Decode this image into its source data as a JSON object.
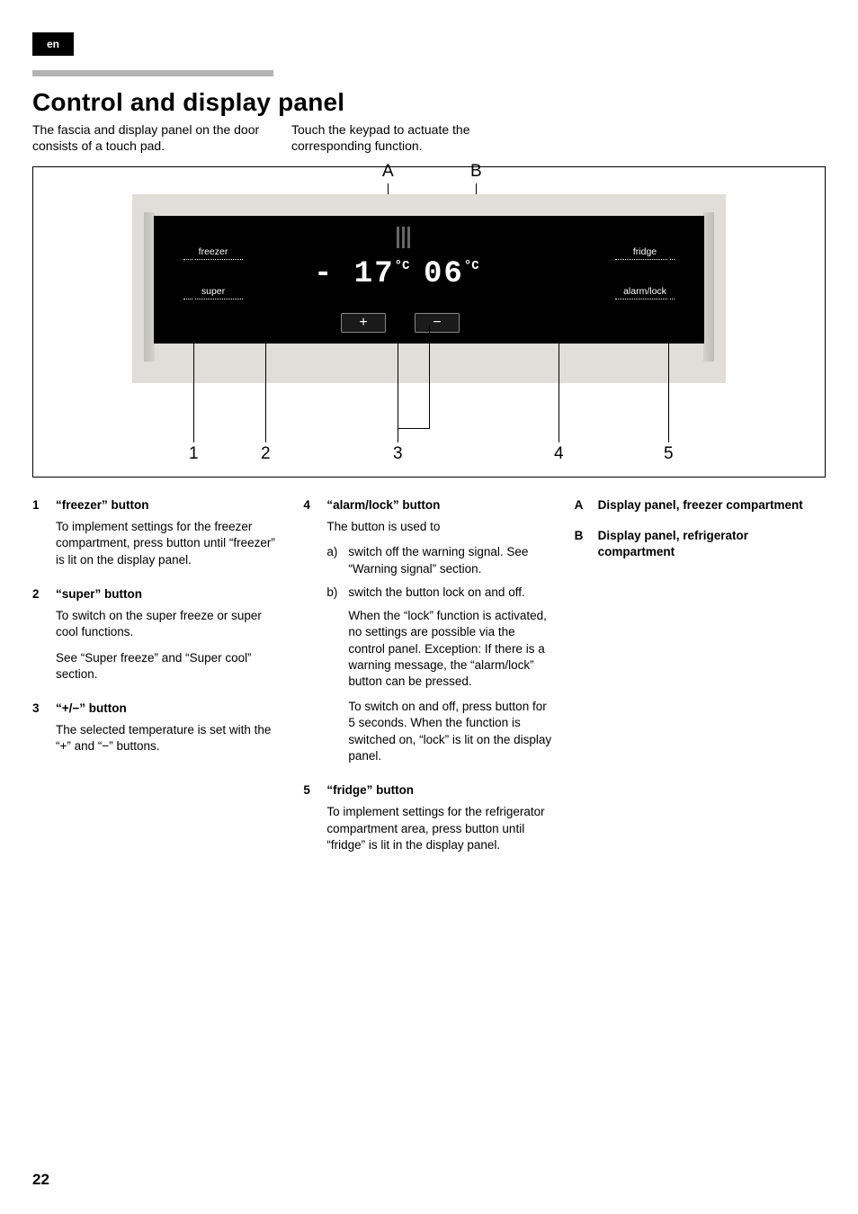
{
  "lang_tab": "en",
  "page_number": "22",
  "heading": "Control and display panel",
  "intro": {
    "col1": "The fascia and display panel on the door consists of a touch pad.",
    "col2": "Touch the keypad to actuate the corresponding function."
  },
  "diagram": {
    "top_labels": {
      "A": "A",
      "B": "B"
    },
    "bottom_labels": [
      "1",
      "2",
      "3",
      "4",
      "5"
    ],
    "panel": {
      "freezer_label": "freezer",
      "super_label": "super",
      "fridge_label": "fridge",
      "alarm_label": "alarm/lock",
      "temp_left": "- 17",
      "temp_right": "06",
      "deg": "°C",
      "plus": "+",
      "minus": "−"
    },
    "colors": {
      "frame_border": "#000000",
      "panel_bg": "#e0ded9",
      "panel_inner": "#000000",
      "text_light": "#ffffff"
    }
  },
  "col1_items": [
    {
      "num": "1",
      "title": "“freezer” button",
      "paras": [
        "To implement settings for the freezer compartment, press button until “freezer” is lit on the display panel."
      ]
    },
    {
      "num": "2",
      "title": "“super” button",
      "paras": [
        "To switch on the super freeze or super cool functions.",
        "See “Super freeze” and “Super cool” section."
      ]
    },
    {
      "num": "3",
      "title": "“+/−” button",
      "paras": [
        "The selected temperature is set with the “+” and “−” buttons."
      ]
    }
  ],
  "col2_items": [
    {
      "num": "4",
      "title": "“alarm/lock” button",
      "paras": [
        "The button is used to"
      ],
      "subs": [
        {
          "sn": "a)",
          "text": "switch off the warning signal. See “Warning signal” section."
        },
        {
          "sn": "b)",
          "text": "switch the button lock on and off."
        }
      ],
      "tail_paras": [
        "When the “lock” function is activated, no settings are possible via the control panel. Exception: If there is a warning message, the “alarm/lock” button can be pressed.",
        "To switch on and off, press button for 5 seconds. When the function is switched on, “lock” is lit on the display panel."
      ]
    },
    {
      "num": "5",
      "title": "“fridge” button",
      "paras": [
        "To implement settings for the refrigerator compartment area, press button until “fridge” is lit in the display panel."
      ]
    }
  ],
  "col3_items": [
    {
      "num": "A",
      "title": "Display panel, freezer compartment"
    },
    {
      "num": "B",
      "title": "Display panel, refrigerator compartment"
    }
  ]
}
